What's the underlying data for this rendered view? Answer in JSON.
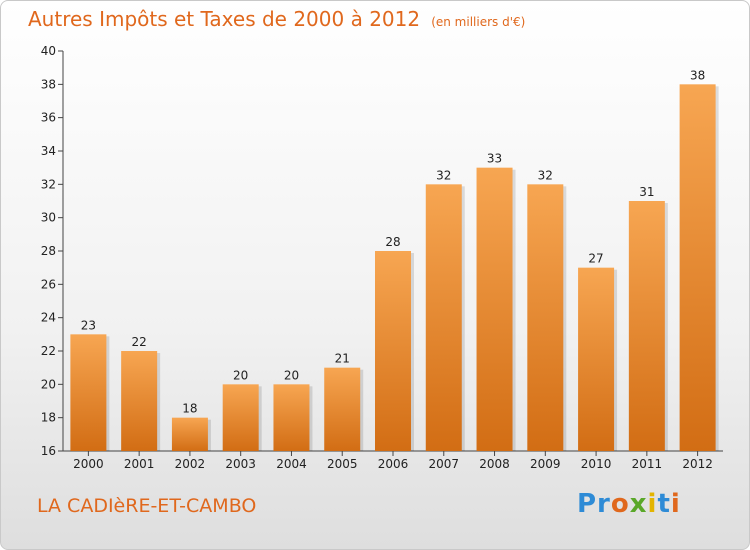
{
  "header": {
    "title": "Autres Impôts et Taxes de 2000 à 2012",
    "unit": "(en milliers d'€)"
  },
  "footer": {
    "commune": "LA CADIèRE-ET-CAMBO",
    "logo_text": "Proxiti"
  },
  "colors": {
    "accent": "#e0681d",
    "bar_top": "#f7a652",
    "bar_bottom": "#d26d14"
  },
  "chart_data": {
    "type": "bar",
    "title": "Autres Impôts et Taxes de 2000 à 2012",
    "subtitle": "(en milliers d'€)",
    "categories": [
      "2000",
      "2001",
      "2002",
      "2003",
      "2004",
      "2005",
      "2006",
      "2007",
      "2008",
      "2009",
      "2010",
      "2011",
      "2012"
    ],
    "values": [
      23,
      22,
      18,
      20,
      20,
      21,
      28,
      32,
      33,
      32,
      27,
      31,
      38
    ],
    "ylim": [
      16,
      40
    ],
    "yticks": [
      16,
      18,
      20,
      22,
      24,
      26,
      28,
      30,
      32,
      34,
      36,
      38,
      40
    ],
    "grid": false,
    "legend": "none"
  }
}
